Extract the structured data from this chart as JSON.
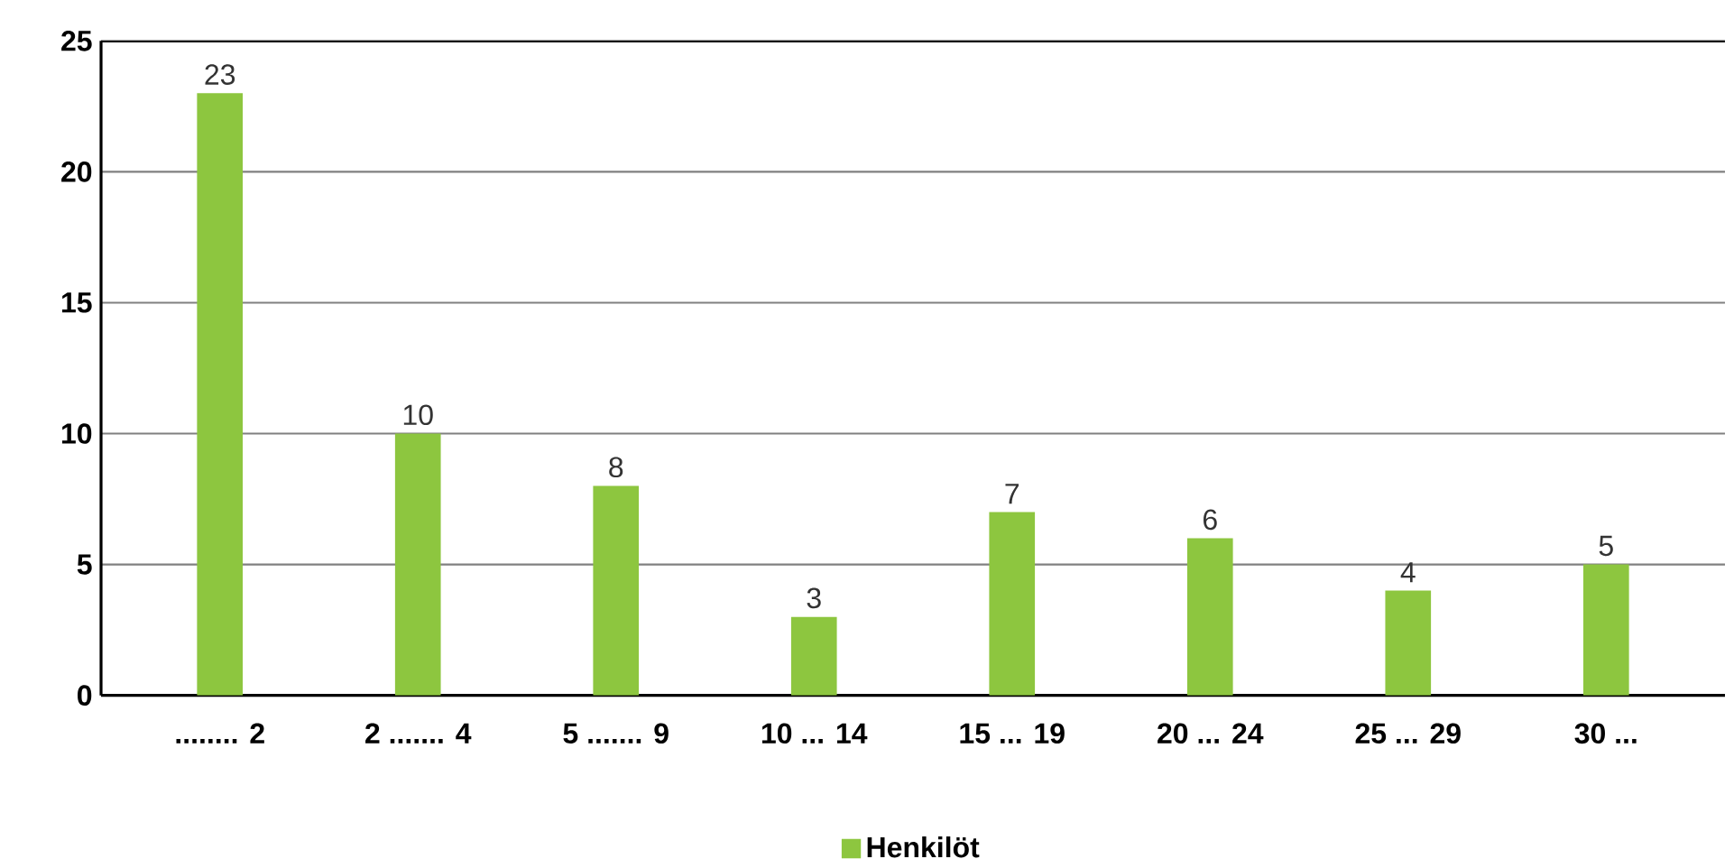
{
  "chart_data": {
    "type": "bar",
    "categories": [
      "........ 2",
      "2 ....... 4",
      "5 ....... 9",
      "10 ... 14",
      "15 ... 19",
      "20 ... 24",
      "25 ... 29",
      "30 ..."
    ],
    "series": [
      {
        "name": "Henkilöt",
        "color": "#8dc63f",
        "values": [
          23,
          10,
          8,
          3,
          7,
          6,
          4,
          5
        ]
      }
    ],
    "ylim": [
      0,
      25
    ],
    "yticks": [
      0,
      5,
      10,
      15,
      20,
      25
    ],
    "grid": "y",
    "legend": "bottom",
    "data_labels": true
  }
}
